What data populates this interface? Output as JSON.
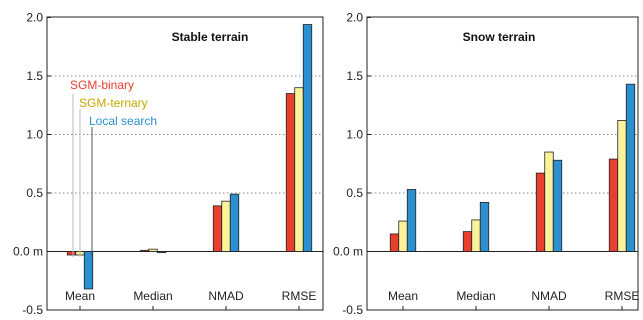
{
  "colors": {
    "SGM-binary": "#e8402f",
    "SGM-ternary": "#fbf39a",
    "Local search": "#2b8fd0",
    "legend_SGM-ternary_text": "#c7a800"
  },
  "chart_data": [
    {
      "type": "bar",
      "title": "Stable terrain",
      "categories": [
        "Mean",
        "Median",
        "NMAD",
        "RMSE"
      ],
      "series": [
        {
          "name": "SGM-binary",
          "values": [
            -0.03,
            0.01,
            0.39,
            1.35
          ]
        },
        {
          "name": "SGM-ternary",
          "values": [
            -0.03,
            0.02,
            0.43,
            1.4
          ]
        },
        {
          "name": "Local search",
          "values": [
            -0.32,
            -0.01,
            0.49,
            1.94
          ]
        }
      ],
      "ylim": [
        -0.5,
        2.0
      ],
      "yticks": [
        "2.0",
        "1.5",
        "1.0",
        "0.5",
        "0.0 m",
        "-0.5"
      ],
      "ytick_values": [
        2.0,
        1.5,
        1.0,
        0.5,
        0.0,
        -0.5
      ],
      "grid": "horizontal dotted",
      "legend": "upper-left, labels with leader lines to the Mean bars"
    },
    {
      "type": "bar",
      "title": "Snow terrain",
      "categories": [
        "Mean",
        "Median",
        "NMAD",
        "RMSE"
      ],
      "series": [
        {
          "name": "SGM-binary",
          "values": [
            0.15,
            0.17,
            0.67,
            0.79
          ]
        },
        {
          "name": "SGM-ternary",
          "values": [
            0.26,
            0.27,
            0.85,
            1.12
          ]
        },
        {
          "name": "Local search",
          "values": [
            0.53,
            0.42,
            0.78,
            1.43
          ]
        }
      ],
      "ylim": [
        -0.5,
        2.0
      ],
      "yticks": [
        "2.0",
        "1.5",
        "1.0",
        "0.5",
        "0.0 m",
        "-0.5"
      ],
      "ytick_values": [
        2.0,
        1.5,
        1.0,
        0.5,
        0.0,
        -0.5
      ],
      "grid": "horizontal dotted"
    }
  ],
  "legend": {
    "items": [
      "SGM-binary",
      "SGM-ternary",
      "Local search"
    ]
  }
}
